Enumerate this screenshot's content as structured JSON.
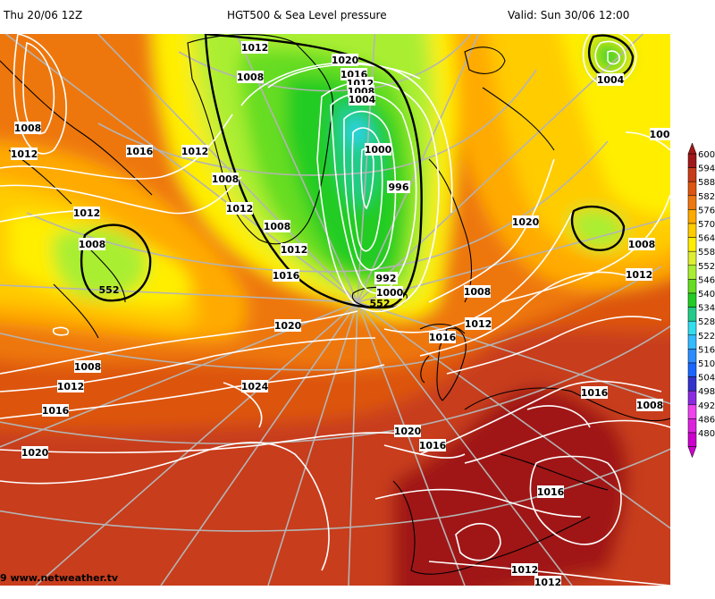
{
  "header": {
    "init_time": "Thu 20/06 12Z",
    "title": "HGT500 & Sea Level pressure",
    "valid_time": "Valid: Sun 30/06 12:00"
  },
  "footer": {
    "credit": "9 www.netweather.tv"
  },
  "colors": {
    "c480": "#cc00cc",
    "c486": "#dd22dd",
    "c492": "#ee44ee",
    "c498": "#8a2be2",
    "c504": "#3333cc",
    "c510": "#1a66ff",
    "c516": "#2d8cff",
    "c522": "#33bbff",
    "c528": "#33ddee",
    "c534": "#22cc88",
    "c540": "#22cc22",
    "c546": "#66dd22",
    "c552": "#aaee33",
    "c558": "#ddee33",
    "c564": "#ffee00",
    "c570": "#ffcc00",
    "c576": "#ffaa00",
    "c582": "#ee7711",
    "c588": "#dd5511",
    "c594": "#c83c1a",
    "c600": "#a01818"
  },
  "scale": {
    "labels": [
      "600",
      "594",
      "588",
      "582",
      "576",
      "570",
      "564",
      "558",
      "552",
      "546",
      "540",
      "534",
      "528",
      "522",
      "516",
      "510",
      "504",
      "498",
      "492",
      "486",
      "480"
    ]
  },
  "map": {
    "isobar_labels": [
      {
        "id": "l1",
        "text": "1012"
      },
      {
        "id": "l2",
        "text": "1008"
      },
      {
        "id": "l3",
        "text": "1020"
      },
      {
        "id": "l4",
        "text": "1016"
      },
      {
        "id": "l5",
        "text": "1012"
      },
      {
        "id": "l6",
        "text": "1008"
      },
      {
        "id": "l7",
        "text": "1004"
      },
      {
        "id": "l8",
        "text": "1000"
      },
      {
        "id": "l9",
        "text": "996"
      },
      {
        "id": "l10",
        "text": "992"
      },
      {
        "id": "l11",
        "text": "1000"
      },
      {
        "id": "l12",
        "text": "1008"
      },
      {
        "id": "l13",
        "text": "1012"
      },
      {
        "id": "l14",
        "text": "1008"
      },
      {
        "id": "l15",
        "text": "1012"
      },
      {
        "id": "l16",
        "text": "1016"
      },
      {
        "id": "l17",
        "text": "1012"
      },
      {
        "id": "l18",
        "text": "1008"
      },
      {
        "id": "l19",
        "text": "1012"
      },
      {
        "id": "l20",
        "text": "1016"
      },
      {
        "id": "l21",
        "text": "1012"
      },
      {
        "id": "l22",
        "text": "1008"
      },
      {
        "id": "l23",
        "text": "1020"
      },
      {
        "id": "l24",
        "text": "1008"
      },
      {
        "id": "l25",
        "text": "1012"
      },
      {
        "id": "l26",
        "text": "1016"
      },
      {
        "id": "l27",
        "text": "1020"
      },
      {
        "id": "l28",
        "text": "1024"
      },
      {
        "id": "l29",
        "text": "1020"
      },
      {
        "id": "l30",
        "text": "1016"
      },
      {
        "id": "l31",
        "text": "1016"
      },
      {
        "id": "l32",
        "text": "1008"
      },
      {
        "id": "l33",
        "text": "1016"
      },
      {
        "id": "l34",
        "text": "1012"
      },
      {
        "id": "l35",
        "text": "1012"
      },
      {
        "id": "l36",
        "text": "1004"
      },
      {
        "id": "l37",
        "text": "100"
      },
      {
        "id": "l38",
        "text": "1020"
      },
      {
        "id": "l39",
        "text": "1008"
      },
      {
        "id": "l40",
        "text": "1008"
      },
      {
        "id": "l41",
        "text": "1012"
      },
      {
        "id": "l42",
        "text": "1016"
      },
      {
        "id": "l43",
        "text": "1012"
      }
    ],
    "height_labels": [
      {
        "id": "h1",
        "text": "552"
      },
      {
        "id": "h2",
        "text": "552"
      }
    ]
  }
}
